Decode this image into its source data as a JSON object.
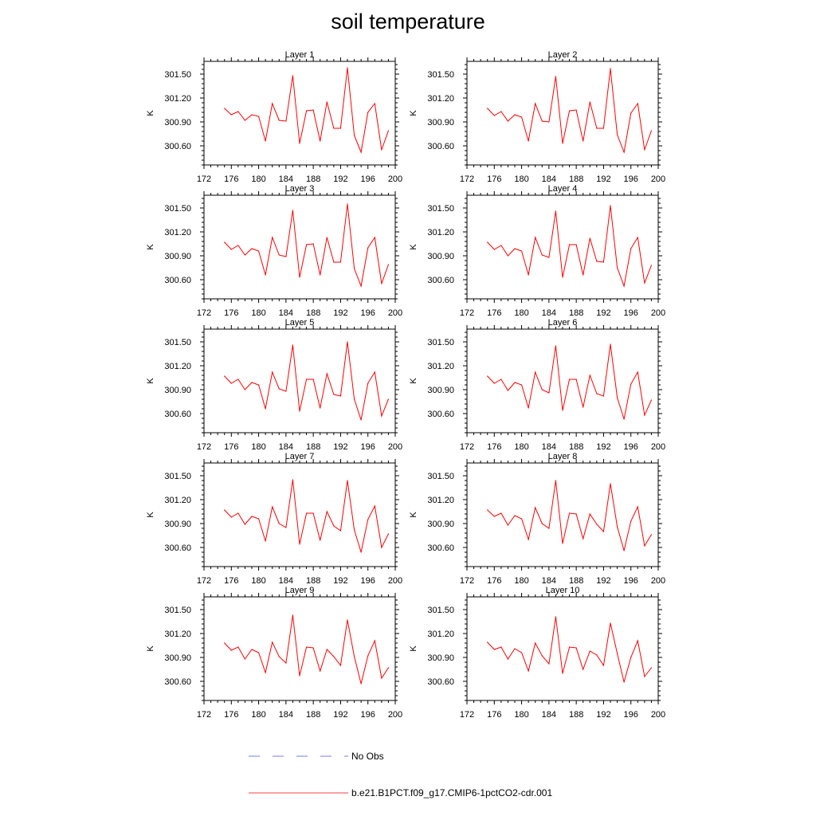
{
  "title": "soil temperature",
  "colors": {
    "series_line": "#ff0000",
    "obs_line": "#4f4fdf",
    "axis": "#000000"
  },
  "legend": [
    {
      "name": "No Obs",
      "style": "dashed",
      "color": "#4f4fdf"
    },
    {
      "name": "b.e21.B1PCT.f09_g17.CMIP6-1pctCO2-cdr.001",
      "style": "solid",
      "color": "#ff0000"
    }
  ],
  "chart_data": [
    {
      "type": "line",
      "title": "Layer 1",
      "ylabel": "K",
      "xlim": [
        172,
        200
      ],
      "ylim": [
        300.36,
        301.66
      ],
      "xticks": [
        172,
        176,
        180,
        184,
        188,
        192,
        196,
        200
      ],
      "yticks": [
        300.6,
        300.9,
        301.2,
        301.5
      ],
      "ytick_labels": [
        "300.60",
        "300.90",
        "301.20",
        "301.50"
      ],
      "x": [
        175,
        176,
        177,
        178,
        179,
        180,
        181,
        182,
        183,
        184,
        185,
        186,
        187,
        188,
        189,
        190,
        191,
        192,
        193,
        194,
        195,
        196,
        197,
        198,
        199
      ],
      "series": [
        {
          "name": "b.e21.B1PCT.f09_g17.CMIP6-1pctCO2-cdr.001",
          "values": [
            301.07,
            300.99,
            301.03,
            300.92,
            300.99,
            300.97,
            300.66,
            301.13,
            300.92,
            300.91,
            301.48,
            300.63,
            301.04,
            301.05,
            300.66,
            301.15,
            300.82,
            300.82,
            301.58,
            300.73,
            300.52,
            301.02,
            301.13,
            300.55,
            300.79
          ]
        }
      ]
    },
    {
      "type": "line",
      "title": "Layer 2",
      "ylabel": "K",
      "xlim": [
        172,
        200
      ],
      "ylim": [
        300.36,
        301.66
      ],
      "xticks": [
        172,
        176,
        180,
        184,
        188,
        192,
        196,
        200
      ],
      "yticks": [
        300.6,
        300.9,
        301.2,
        301.5
      ],
      "ytick_labels": [
        "300.60",
        "300.90",
        "301.20",
        "301.50"
      ],
      "x": [
        175,
        176,
        177,
        178,
        179,
        180,
        181,
        182,
        183,
        184,
        185,
        186,
        187,
        188,
        189,
        190,
        191,
        192,
        193,
        194,
        195,
        196,
        197,
        198,
        199
      ],
      "series": [
        {
          "name": "b.e21.B1PCT.f09_g17.CMIP6-1pctCO2-cdr.001",
          "values": [
            301.07,
            300.98,
            301.03,
            300.91,
            300.99,
            300.96,
            300.66,
            301.13,
            300.91,
            300.9,
            301.47,
            300.63,
            301.04,
            301.05,
            300.66,
            301.15,
            300.82,
            300.82,
            301.57,
            300.74,
            300.52,
            301.01,
            301.13,
            300.55,
            300.79
          ]
        }
      ]
    },
    {
      "type": "line",
      "title": "Layer 3",
      "ylabel": "K",
      "xlim": [
        172,
        200
      ],
      "ylim": [
        300.36,
        301.66
      ],
      "xticks": [
        172,
        176,
        180,
        184,
        188,
        192,
        196,
        200
      ],
      "yticks": [
        300.6,
        300.9,
        301.2,
        301.5
      ],
      "ytick_labels": [
        "300.60",
        "300.90",
        "301.20",
        "301.50"
      ],
      "x": [
        175,
        176,
        177,
        178,
        179,
        180,
        181,
        182,
        183,
        184,
        185,
        186,
        187,
        188,
        189,
        190,
        191,
        192,
        193,
        194,
        195,
        196,
        197,
        198,
        199
      ],
      "series": [
        {
          "name": "b.e21.B1PCT.f09_g17.CMIP6-1pctCO2-cdr.001",
          "values": [
            301.07,
            300.98,
            301.03,
            300.91,
            300.99,
            300.96,
            300.66,
            301.13,
            300.91,
            300.89,
            301.47,
            300.63,
            301.04,
            301.05,
            300.66,
            301.13,
            300.82,
            300.82,
            301.55,
            300.74,
            300.52,
            301.0,
            301.13,
            300.55,
            300.79
          ]
        }
      ]
    },
    {
      "type": "line",
      "title": "Layer 4",
      "ylabel": "K",
      "xlim": [
        172,
        200
      ],
      "ylim": [
        300.36,
        301.66
      ],
      "xticks": [
        172,
        176,
        180,
        184,
        188,
        192,
        196,
        200
      ],
      "yticks": [
        300.6,
        300.9,
        301.2,
        301.5
      ],
      "ytick_labels": [
        "300.60",
        "300.90",
        "301.20",
        "301.50"
      ],
      "x": [
        175,
        176,
        177,
        178,
        179,
        180,
        181,
        182,
        183,
        184,
        185,
        186,
        187,
        188,
        189,
        190,
        191,
        192,
        193,
        194,
        195,
        196,
        197,
        198,
        199
      ],
      "series": [
        {
          "name": "b.e21.B1PCT.f09_g17.CMIP6-1pctCO2-cdr.001",
          "values": [
            301.07,
            300.98,
            301.03,
            300.9,
            300.99,
            300.96,
            300.66,
            301.13,
            300.91,
            300.88,
            301.46,
            300.63,
            301.04,
            301.04,
            300.66,
            301.12,
            300.83,
            300.82,
            301.53,
            300.75,
            300.52,
            300.99,
            301.13,
            300.56,
            300.78
          ]
        }
      ]
    },
    {
      "type": "line",
      "title": "Layer 5",
      "ylabel": "K",
      "xlim": [
        172,
        200
      ],
      "ylim": [
        300.36,
        301.66
      ],
      "xticks": [
        172,
        176,
        180,
        184,
        188,
        192,
        196,
        200
      ],
      "yticks": [
        300.6,
        300.9,
        301.2,
        301.5
      ],
      "ytick_labels": [
        "300.60",
        "300.90",
        "301.20",
        "301.50"
      ],
      "x": [
        175,
        176,
        177,
        178,
        179,
        180,
        181,
        182,
        183,
        184,
        185,
        186,
        187,
        188,
        189,
        190,
        191,
        192,
        193,
        194,
        195,
        196,
        197,
        198,
        199
      ],
      "series": [
        {
          "name": "b.e21.B1PCT.f09_g17.CMIP6-1pctCO2-cdr.001",
          "values": [
            301.07,
            300.98,
            301.03,
            300.9,
            300.99,
            300.96,
            300.66,
            301.12,
            300.91,
            300.88,
            301.46,
            300.63,
            301.03,
            301.03,
            300.67,
            301.1,
            300.84,
            300.82,
            301.5,
            300.78,
            300.52,
            300.98,
            301.12,
            300.57,
            300.78
          ]
        }
      ]
    },
    {
      "type": "line",
      "title": "Layer 6",
      "ylabel": "K",
      "xlim": [
        172,
        200
      ],
      "ylim": [
        300.36,
        301.66
      ],
      "xticks": [
        172,
        176,
        180,
        184,
        188,
        192,
        196,
        200
      ],
      "yticks": [
        300.6,
        300.9,
        301.2,
        301.5
      ],
      "ytick_labels": [
        "300.60",
        "300.90",
        "301.20",
        "301.50"
      ],
      "x": [
        175,
        176,
        177,
        178,
        179,
        180,
        181,
        182,
        183,
        184,
        185,
        186,
        187,
        188,
        189,
        190,
        191,
        192,
        193,
        194,
        195,
        196,
        197,
        198,
        199
      ],
      "series": [
        {
          "name": "b.e21.B1PCT.f09_g17.CMIP6-1pctCO2-cdr.001",
          "values": [
            301.07,
            300.98,
            301.03,
            300.89,
            300.99,
            300.96,
            300.67,
            301.12,
            300.9,
            300.86,
            301.45,
            300.64,
            301.03,
            301.03,
            300.68,
            301.08,
            300.85,
            300.82,
            301.47,
            300.8,
            300.53,
            300.97,
            301.12,
            300.58,
            300.77
          ]
        }
      ]
    },
    {
      "type": "line",
      "title": "Layer 7",
      "ylabel": "K",
      "xlim": [
        172,
        200
      ],
      "ylim": [
        300.36,
        301.66
      ],
      "xticks": [
        172,
        176,
        180,
        184,
        188,
        192,
        196,
        200
      ],
      "yticks": [
        300.6,
        300.9,
        301.2,
        301.5
      ],
      "ytick_labels": [
        "300.60",
        "300.90",
        "301.20",
        "301.50"
      ],
      "x": [
        175,
        176,
        177,
        178,
        179,
        180,
        181,
        182,
        183,
        184,
        185,
        186,
        187,
        188,
        189,
        190,
        191,
        192,
        193,
        194,
        195,
        196,
        197,
        198,
        199
      ],
      "series": [
        {
          "name": "b.e21.B1PCT.f09_g17.CMIP6-1pctCO2-cdr.001",
          "values": [
            301.07,
            300.98,
            301.03,
            300.89,
            300.99,
            300.96,
            300.68,
            301.11,
            300.9,
            300.85,
            301.45,
            300.64,
            301.03,
            301.03,
            300.69,
            301.05,
            300.87,
            300.81,
            301.44,
            300.82,
            300.54,
            300.95,
            301.12,
            300.6,
            300.77
          ]
        }
      ]
    },
    {
      "type": "line",
      "title": "Layer 8",
      "ylabel": "K",
      "xlim": [
        172,
        200
      ],
      "ylim": [
        300.36,
        301.66
      ],
      "xticks": [
        172,
        176,
        180,
        184,
        188,
        192,
        196,
        200
      ],
      "yticks": [
        300.6,
        300.9,
        301.2,
        301.5
      ],
      "ytick_labels": [
        "300.60",
        "300.90",
        "301.20",
        "301.50"
      ],
      "x": [
        175,
        176,
        177,
        178,
        179,
        180,
        181,
        182,
        183,
        184,
        185,
        186,
        187,
        188,
        189,
        190,
        191,
        192,
        193,
        194,
        195,
        196,
        197,
        198,
        199
      ],
      "series": [
        {
          "name": "b.e21.B1PCT.f09_g17.CMIP6-1pctCO2-cdr.001",
          "values": [
            301.07,
            300.99,
            301.03,
            300.88,
            301.0,
            300.96,
            300.7,
            301.1,
            300.9,
            300.84,
            301.44,
            300.65,
            301.03,
            301.02,
            300.71,
            301.02,
            300.89,
            300.8,
            301.4,
            300.86,
            300.56,
            300.93,
            301.11,
            300.62,
            300.76
          ]
        }
      ]
    },
    {
      "type": "line",
      "title": "Layer 9",
      "ylabel": "K",
      "xlim": [
        172,
        200
      ],
      "ylim": [
        300.36,
        301.66
      ],
      "xticks": [
        172,
        176,
        180,
        184,
        188,
        192,
        196,
        200
      ],
      "yticks": [
        300.6,
        300.9,
        301.2,
        301.5
      ],
      "ytick_labels": [
        "300.60",
        "300.90",
        "301.20",
        "301.50"
      ],
      "x": [
        175,
        176,
        177,
        178,
        179,
        180,
        181,
        182,
        183,
        184,
        185,
        186,
        187,
        188,
        189,
        190,
        191,
        192,
        193,
        194,
        195,
        196,
        197,
        198,
        199
      ],
      "series": [
        {
          "name": "b.e21.B1PCT.f09_g17.CMIP6-1pctCO2-cdr.001",
          "values": [
            301.08,
            300.99,
            301.03,
            300.88,
            301.0,
            300.96,
            300.71,
            301.09,
            300.91,
            300.83,
            301.43,
            300.67,
            301.03,
            301.02,
            300.73,
            301.0,
            300.91,
            300.8,
            301.37,
            300.91,
            300.57,
            300.92,
            301.11,
            300.64,
            300.77
          ]
        }
      ]
    },
    {
      "type": "line",
      "title": "Layer 10",
      "ylabel": "K",
      "xlim": [
        172,
        200
      ],
      "ylim": [
        300.36,
        301.66
      ],
      "xticks": [
        172,
        176,
        180,
        184,
        188,
        192,
        196,
        200
      ],
      "yticks": [
        300.6,
        300.9,
        301.2,
        301.5
      ],
      "ytick_labels": [
        "300.60",
        "300.90",
        "301.20",
        "301.50"
      ],
      "x": [
        175,
        176,
        177,
        178,
        179,
        180,
        181,
        182,
        183,
        184,
        185,
        186,
        187,
        188,
        189,
        190,
        191,
        192,
        193,
        194,
        195,
        196,
        197,
        198,
        199
      ],
      "series": [
        {
          "name": "b.e21.B1PCT.f09_g17.CMIP6-1pctCO2-cdr.001",
          "values": [
            301.09,
            301.0,
            301.03,
            300.88,
            301.01,
            300.96,
            300.73,
            301.08,
            300.92,
            300.82,
            301.41,
            300.7,
            301.03,
            301.02,
            300.75,
            300.98,
            300.93,
            300.8,
            301.33,
            300.95,
            300.59,
            300.9,
            301.11,
            300.66,
            300.77
          ]
        }
      ]
    }
  ]
}
